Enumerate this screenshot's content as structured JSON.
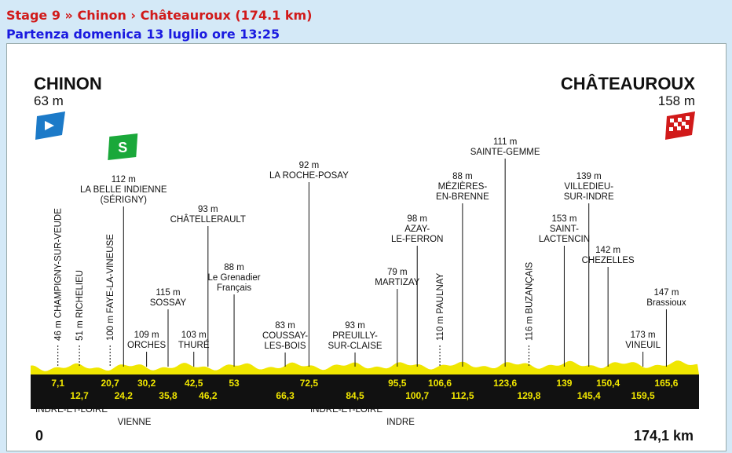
{
  "header": {
    "stage_line": "Stage 9 » Chinon › Châteauroux (174.1 km)",
    "start_line": "Partenza domenica 13 luglio ore 13:25"
  },
  "profile": {
    "start": {
      "name": "CHINON",
      "alt": "63 m"
    },
    "finish": {
      "name": "CHÂTEAUROUX",
      "alt": "158 m"
    },
    "start_km": "0",
    "end_km": "174,1 km",
    "colors": {
      "road": "#f0e600",
      "band": "#111111",
      "start_flag": "#1c7ac8",
      "finish_flag": "#d11a1a",
      "sprint": "#1aa83a"
    }
  },
  "icons": {
    "start": "start-flag-icon",
    "finish": "finish-flag-icon",
    "sprint": "sprint-icon"
  },
  "chart_data": {
    "type": "area",
    "unit_x": "km",
    "unit_y": "m",
    "xlim": [
      0,
      174.1
    ],
    "waypoints": [
      {
        "km": 7.1,
        "km_label": "7,1",
        "lines": [
          "46 m CHAMPIGNY-SUR-VEUDE"
        ],
        "rotated": true
      },
      {
        "km": 12.7,
        "km_label": "12,7",
        "lines": [
          "51 m RICHELIEU"
        ],
        "rotated": true
      },
      {
        "km": 20.7,
        "km_label": "20,7",
        "lines": [
          "100 m FAYE-LA-VINEUSE"
        ],
        "rotated": true
      },
      {
        "km": 24.2,
        "km_label": "24,2",
        "lines": [
          "112 m",
          "LA BELLE INDIENNE",
          "(SÉRIGNY)"
        ],
        "sprint": true
      },
      {
        "km": 30.2,
        "km_label": "30,2",
        "lines": [
          "109 m",
          "ORCHES"
        ]
      },
      {
        "km": 35.8,
        "km_label": "35,8",
        "lines": [
          "115 m",
          "SOSSAY"
        ]
      },
      {
        "km": 42.5,
        "km_label": "42,5",
        "lines": [
          "103 m",
          "THURÉ"
        ]
      },
      {
        "km": 46.2,
        "km_label": "46,2",
        "lines": [
          "93 m",
          "CHÂTELLERAULT"
        ]
      },
      {
        "km": 53,
        "km_label": "53",
        "lines": [
          "88 m",
          "Le Grenadier",
          "Français"
        ]
      },
      {
        "km": 66.3,
        "km_label": "66,3",
        "lines": [
          "83 m",
          "COUSSAY-",
          "LES-BOIS"
        ]
      },
      {
        "km": 72.5,
        "km_label": "72,5",
        "lines": [
          "92 m",
          "LA ROCHE-POSAY"
        ]
      },
      {
        "km": 84.5,
        "km_label": "84,5",
        "lines": [
          "93 m",
          "PREUILLY-",
          "SUR-CLAISE"
        ]
      },
      {
        "km": 95.5,
        "km_label": "95,5",
        "lines": [
          "79 m",
          "MARTIZAY"
        ]
      },
      {
        "km": 100.7,
        "km_label": "100,7",
        "lines": [
          "98 m",
          "AZAY-",
          "LE-FERRON"
        ]
      },
      {
        "km": 106.6,
        "km_label": "106,6",
        "lines": [
          "110 m PAULNAY"
        ],
        "rotated": true
      },
      {
        "km": 112.5,
        "km_label": "112,5",
        "lines": [
          "88 m",
          "MÉZIÈRES-",
          "EN-BRENNE"
        ]
      },
      {
        "km": 123.6,
        "km_label": "123,6",
        "lines": [
          "111 m",
          "SAINTE-GEMME"
        ]
      },
      {
        "km": 129.8,
        "km_label": "129,8",
        "lines": [
          "116 m BUZANÇAIS"
        ],
        "rotated": true
      },
      {
        "km": 139,
        "km_label": "139",
        "lines": [
          "153 m",
          "SAINT-",
          "LACTENCIN"
        ]
      },
      {
        "km": 145.4,
        "km_label": "145,4",
        "lines": [
          "139 m",
          "VILLEDIEU-",
          "SUR-INDRE"
        ]
      },
      {
        "km": 150.4,
        "km_label": "150,4",
        "lines": [
          "142 m",
          "CHEZELLES"
        ]
      },
      {
        "km": 159.5,
        "km_label": "159,5",
        "lines": [
          "173 m",
          "VINEUIL"
        ]
      },
      {
        "km": 165.6,
        "km_label": "165,6",
        "lines": [
          "147 m",
          "Brassioux"
        ]
      }
    ],
    "regions": [
      {
        "name": "INDRE-ET-LOIRE",
        "row": 1,
        "align": "start"
      },
      {
        "name": "VIENNE",
        "row": 2
      },
      {
        "name": "INDRE-ET-LOIRE",
        "row": 1
      },
      {
        "name": "INDRE",
        "row": 2
      }
    ]
  }
}
